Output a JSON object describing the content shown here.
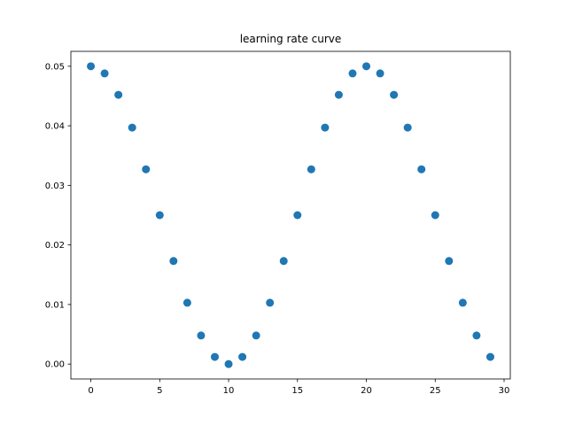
{
  "chart_data": {
    "type": "scatter",
    "title": "learning rate curve",
    "xlabel": "",
    "ylabel": "",
    "xlim": [
      -1.45,
      30.45
    ],
    "ylim": [
      -0.0025,
      0.0525
    ],
    "grid": false,
    "x_ticks": [
      0,
      5,
      10,
      15,
      20,
      25,
      30
    ],
    "x_tick_labels": [
      "0",
      "5",
      "10",
      "15",
      "20",
      "25",
      "30"
    ],
    "y_ticks": [
      0.0,
      0.01,
      0.02,
      0.03,
      0.04,
      0.05
    ],
    "y_tick_labels": [
      "0.00",
      "0.01",
      "0.02",
      "0.03",
      "0.04",
      "0.05"
    ],
    "marker_color": "#1f77b4",
    "x": [
      0,
      1,
      2,
      3,
      4,
      5,
      6,
      7,
      8,
      9,
      10,
      11,
      12,
      13,
      14,
      15,
      16,
      17,
      18,
      19,
      20,
      21,
      22,
      23,
      24,
      25,
      26,
      27,
      28,
      29
    ],
    "y": [
      0.05,
      0.0488,
      0.0452,
      0.0397,
      0.0327,
      0.025,
      0.0173,
      0.0103,
      0.0048,
      0.0012,
      0.0,
      0.0012,
      0.0048,
      0.0103,
      0.0173,
      0.025,
      0.0327,
      0.0397,
      0.0452,
      0.0488,
      0.05,
      0.0488,
      0.0452,
      0.0397,
      0.0327,
      0.025,
      0.0173,
      0.0103,
      0.0048,
      0.0012
    ]
  }
}
